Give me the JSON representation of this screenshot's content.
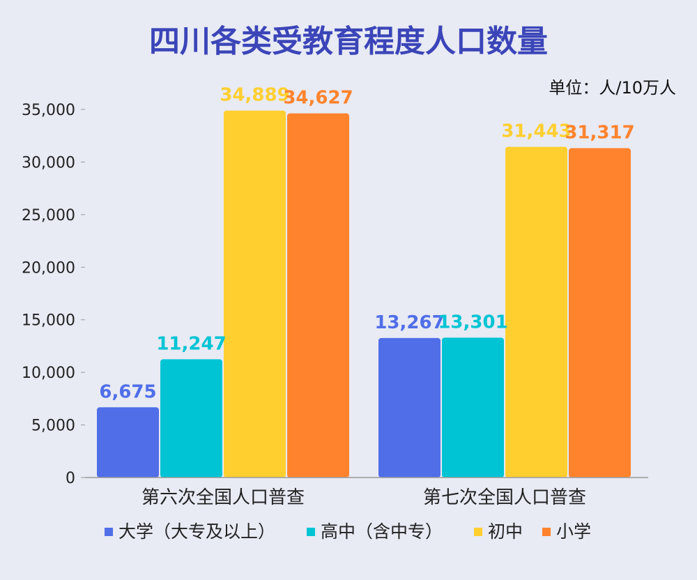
{
  "chart_data": {
    "type": "bar",
    "title": "四川各类受教育程度人口数量",
    "unit_note": "单位：人/10万人",
    "categories": [
      "第六次全国人口普查",
      "第七次全国人口普查"
    ],
    "series": [
      {
        "name": "大学（大专及以上）",
        "values": [
          6675,
          13267
        ],
        "labels": [
          "6,675",
          "13,267"
        ],
        "color": "#4f6ee8"
      },
      {
        "name": "高中（含中专）",
        "values": [
          11247,
          13301
        ],
        "labels": [
          "11,247",
          "13,301"
        ],
        "color": "#00c4d4"
      },
      {
        "name": "初中",
        "values": [
          34889,
          31443
        ],
        "labels": [
          "34,889",
          "31,443"
        ],
        "color": "#ffcf30"
      },
      {
        "name": "小学",
        "values": [
          34627,
          31317
        ],
        "labels": [
          "34,627",
          "31,317"
        ],
        "color": "#ff832d"
      }
    ],
    "yticks": [
      0,
      5000,
      10000,
      15000,
      20000,
      25000,
      30000,
      35000
    ],
    "ytick_labels": [
      "0",
      "5,000",
      "10,000",
      "15,000",
      "20,000",
      "25,000",
      "30,000",
      "35,000"
    ],
    "ylim": [
      0,
      35000
    ],
    "grid": false,
    "legend_position": "bottom",
    "colors": {
      "title": "#3b45b8",
      "axis": "#999999",
      "text": "#222222"
    }
  }
}
